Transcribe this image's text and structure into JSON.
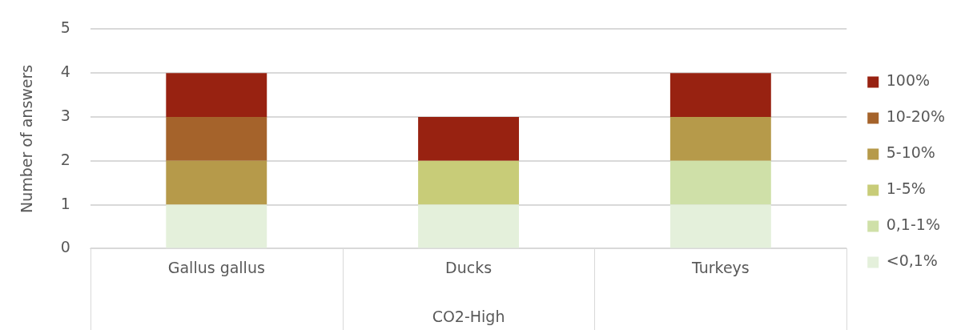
{
  "chart_data": {
    "type": "bar",
    "stacked": true,
    "ylabel": "Number of answers",
    "xlabel": "CO2-High",
    "categories": [
      "Gallus gallus",
      "Ducks",
      "Turkeys"
    ],
    "series": [
      {
        "name": "<0,1%",
        "color": "#e4f0db",
        "values": [
          1,
          1,
          1
        ]
      },
      {
        "name": "0,1-1%",
        "color": "#cfe0a8",
        "values": [
          0,
          0,
          1
        ]
      },
      {
        "name": "1-5%",
        "color": "#c8cc78",
        "values": [
          0,
          1,
          0
        ]
      },
      {
        "name": "5-10%",
        "color": "#b69a4a",
        "values": [
          1,
          0,
          1
        ]
      },
      {
        "name": "10-20%",
        "color": "#a5632b",
        "values": [
          1,
          0,
          0
        ]
      },
      {
        "name": "100%",
        "color": "#982211",
        "values": [
          1,
          1,
          1
        ]
      }
    ],
    "ylim": [
      0,
      5
    ],
    "yticks": [
      0,
      1,
      2,
      3,
      4,
      5
    ],
    "grid": "y",
    "legend": "right"
  }
}
